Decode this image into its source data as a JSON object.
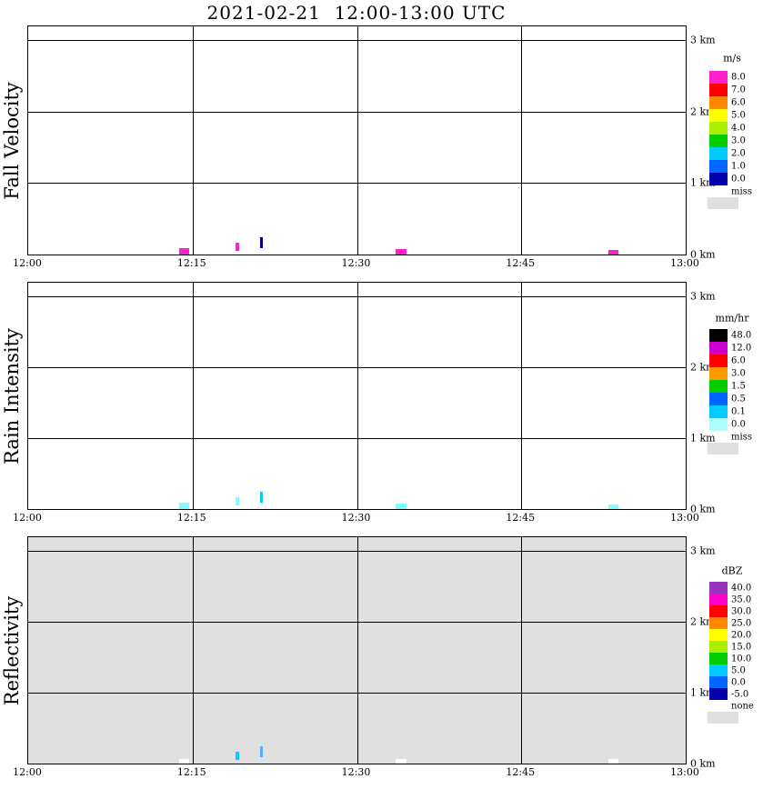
{
  "title": "2021-02-21  12:00-13:00 UTC",
  "chart_data": [
    {
      "type": "heatmap",
      "panel": "fall-velocity",
      "ylabel": "Fall Velocity",
      "x_ticks": [
        "12:00",
        "12:15",
        "12:30",
        "12:45",
        "13:00"
      ],
      "x_tick_minutes": [
        0,
        15,
        30,
        45,
        60
      ],
      "grid_minutes": [
        15,
        30,
        45
      ],
      "y_range_km": [
        0,
        3.2
      ],
      "height_labels": [
        {
          "km": 3,
          "label": "3 km"
        },
        {
          "km": 2,
          "label": "2 km"
        },
        {
          "km": 1,
          "label": "1 km"
        },
        {
          "km": 0,
          "label": "0 km"
        }
      ],
      "background": "#ffffff",
      "colorbar": {
        "title": "m/s",
        "levels": [
          "8.0",
          "7.0",
          "6.0",
          "5.0",
          "4.0",
          "3.0",
          "2.0",
          "1.0",
          "0.0"
        ],
        "colors": [
          "#ff22cc",
          "#ff0000",
          "#ff8800",
          "#ffff00",
          "#aaee00",
          "#00cc00",
          "#00ccff",
          "#0066ff",
          "#0000aa"
        ],
        "extra_label": "miss",
        "extra_color": "#e0e0e0"
      },
      "marks": [
        {
          "minute": 14.2,
          "minutes_wide": 0.9,
          "km_from": 0.0,
          "km_to": 0.09,
          "color": "#ff22cc"
        },
        {
          "minute": 19.1,
          "minutes_wide": 0.3,
          "km_from": 0.05,
          "km_to": 0.17,
          "color": "#ff22cc"
        },
        {
          "minute": 21.3,
          "minutes_wide": 0.3,
          "km_from": 0.09,
          "km_to": 0.24,
          "color": "#000099"
        },
        {
          "minute": 34.0,
          "minutes_wide": 1.0,
          "km_from": 0.0,
          "km_to": 0.08,
          "color": "#ff22cc"
        },
        {
          "minute": 53.4,
          "minutes_wide": 0.9,
          "km_from": 0.0,
          "km_to": 0.06,
          "color": "#ff22cc"
        }
      ]
    },
    {
      "type": "heatmap",
      "panel": "rain-intensity",
      "ylabel": "Rain Intensity",
      "x_ticks": [
        "12:00",
        "12:15",
        "12:30",
        "12:45",
        "13:00"
      ],
      "x_tick_minutes": [
        0,
        15,
        30,
        45,
        60
      ],
      "grid_minutes": [
        15,
        30,
        45
      ],
      "y_range_km": [
        0,
        3.2
      ],
      "height_labels": [
        {
          "km": 3,
          "label": "3 km"
        },
        {
          "km": 2,
          "label": "2 km"
        },
        {
          "km": 1,
          "label": "1 km"
        },
        {
          "km": 0,
          "label": "0 km"
        }
      ],
      "background": "#ffffff",
      "colorbar": {
        "title": "mm/hr",
        "levels": [
          "48.0",
          "12.0",
          "6.0",
          "3.0",
          "1.5",
          "0.5",
          "0.1",
          "0.0"
        ],
        "colors": [
          "#000000",
          "#cc00cc",
          "#ff0000",
          "#ff9900",
          "#00cc00",
          "#0066ff",
          "#00ccff",
          "#aaffff"
        ],
        "extra_label": "miss",
        "extra_color": "#e0e0e0"
      },
      "marks": [
        {
          "minute": 14.2,
          "minutes_wide": 0.9,
          "km_from": 0.0,
          "km_to": 0.09,
          "color": "#7fffff"
        },
        {
          "minute": 19.1,
          "minutes_wide": 0.3,
          "km_from": 0.05,
          "km_to": 0.17,
          "color": "#7fffff"
        },
        {
          "minute": 21.3,
          "minutes_wide": 0.3,
          "km_from": 0.09,
          "km_to": 0.24,
          "color": "#00ccff"
        },
        {
          "minute": 34.0,
          "minutes_wide": 1.0,
          "km_from": 0.0,
          "km_to": 0.08,
          "color": "#7fffff"
        },
        {
          "minute": 53.4,
          "minutes_wide": 0.9,
          "km_from": 0.0,
          "km_to": 0.06,
          "color": "#7fffff"
        }
      ]
    },
    {
      "type": "heatmap",
      "panel": "reflectivity",
      "ylabel": "Reflectivity",
      "x_ticks": [
        "12:00",
        "12:15",
        "12:30",
        "12:45",
        "13:00"
      ],
      "x_tick_minutes": [
        0,
        15,
        30,
        45,
        60
      ],
      "grid_minutes": [
        15,
        30,
        45
      ],
      "y_range_km": [
        0,
        3.2
      ],
      "height_labels": [
        {
          "km": 3,
          "label": "3 km"
        },
        {
          "km": 2,
          "label": "2 km"
        },
        {
          "km": 1,
          "label": "1 km"
        },
        {
          "km": 0,
          "label": "0 km"
        }
      ],
      "background": "#e0e0e0",
      "colorbar": {
        "title": "dBZ",
        "levels": [
          "40.0",
          "35.0",
          "30.0",
          "25.0",
          "20.0",
          "15.0",
          "10.0",
          "5.0",
          "0.0",
          "-5.0"
        ],
        "colors": [
          "#9933bb",
          "#ff00cc",
          "#ff0000",
          "#ff8800",
          "#ffff00",
          "#aaee00",
          "#00cc00",
          "#00ccff",
          "#0066ff",
          "#0000aa"
        ],
        "extra_label": "none",
        "extra_color": "#e0e0e0"
      },
      "marks": [
        {
          "minute": 14.2,
          "minutes_wide": 0.9,
          "km_from": 0.0,
          "km_to": 0.07,
          "color": "#ffffff"
        },
        {
          "minute": 19.1,
          "minutes_wide": 0.3,
          "km_from": 0.05,
          "km_to": 0.17,
          "color": "#00ccff"
        },
        {
          "minute": 21.3,
          "minutes_wide": 0.3,
          "km_from": 0.09,
          "km_to": 0.24,
          "color": "#55aaff"
        },
        {
          "minute": 34.0,
          "minutes_wide": 1.0,
          "km_from": 0.0,
          "km_to": 0.07,
          "color": "#ffffff"
        },
        {
          "minute": 53.4,
          "minutes_wide": 0.9,
          "km_from": 0.0,
          "km_to": 0.06,
          "color": "#ffffff"
        }
      ]
    }
  ]
}
